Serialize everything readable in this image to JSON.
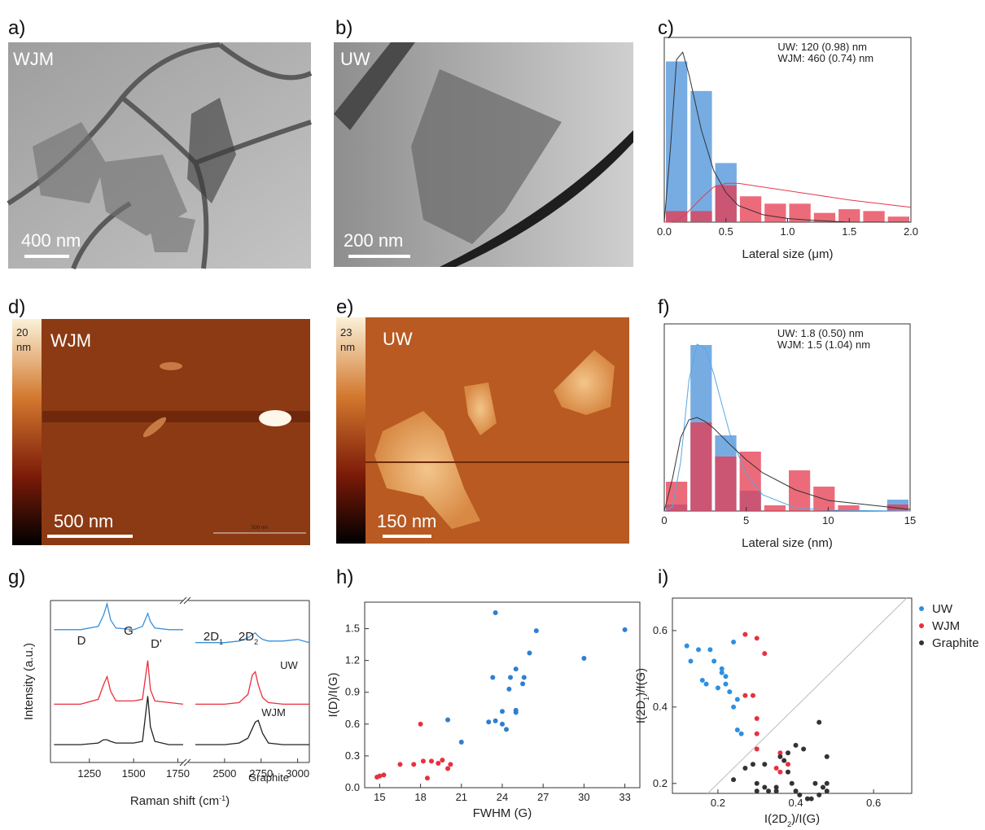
{
  "panels": {
    "a": {
      "label": "a)",
      "sample": "WJM",
      "scale_bar": "400 nm"
    },
    "b": {
      "label": "b)",
      "sample": "UW",
      "scale_bar": "200 nm"
    },
    "d": {
      "label": "d)",
      "sample": "WJM",
      "scale_bar": "500 nm",
      "scale_bar_small": "500 nm",
      "colorbar_max": 20,
      "colorbar_unit": "nm"
    },
    "e": {
      "label": "e)",
      "sample": "UW",
      "scale_bar": "150 nm",
      "colorbar_max": 23,
      "colorbar_unit": "nm"
    }
  },
  "chart_data": [
    {
      "type": "histogram",
      "panel_label": "c)",
      "xlabel": "Lateral size (μm)",
      "bins": [
        0,
        0.2,
        0.4,
        0.6,
        0.8,
        1.0,
        1.2,
        1.4,
        1.6,
        1.8,
        2.0
      ],
      "xlim": [
        0,
        2
      ],
      "xticks": [
        {
          "value": 0,
          "label": "0.0"
        },
        0.5,
        {
          "value": 1,
          "label": "1.0"
        },
        1.5,
        {
          "value": 2,
          "label": "2.0"
        }
      ],
      "ylim": [
        0,
        100
      ],
      "opacity": 0.75,
      "series": [
        {
          "name": "UW: 120 (0.98) nm",
          "color": "#4a90d9",
          "values": [
            87,
            71,
            32,
            0,
            0,
            0,
            0,
            0,
            0,
            0
          ]
        },
        {
          "name": "WJM: 460 (0.74) nm",
          "color": "#e63a4e",
          "values": [
            6,
            6,
            20,
            14,
            10,
            10,
            5,
            7,
            6,
            3
          ]
        }
      ],
      "fits": [
        {
          "color": "#333333",
          "x": [
            0,
            0.05,
            0.1,
            0.15,
            0.2,
            0.3,
            0.4,
            0.5,
            0.6,
            0.8,
            1.0,
            1.2,
            1.5,
            2.0
          ],
          "values": [
            0,
            40,
            88,
            92,
            80,
            50,
            28,
            16,
            9,
            4,
            2,
            1,
            0,
            0
          ]
        },
        {
          "color": "#e63a4e",
          "x": [
            0,
            0.05,
            0.1,
            0.15,
            0.2,
            0.3,
            0.4,
            0.5,
            0.6,
            0.8,
            1.0,
            1.2,
            1.5,
            2.0
          ],
          "values": [
            0,
            0,
            1,
            3,
            6,
            13,
            19,
            21,
            21,
            19,
            17,
            15,
            12,
            8
          ]
        }
      ]
    },
    {
      "type": "histogram",
      "panel_label": "f)",
      "xlabel": "Lateral size (nm)",
      "bins": [
        0,
        1.5,
        3,
        4.5,
        6,
        7.5,
        9,
        10.5,
        12,
        13.5,
        15
      ],
      "xlim": [
        0,
        15
      ],
      "xticks": [
        0,
        5,
        10,
        15
      ],
      "ylim": [
        0,
        230
      ],
      "opacity": 0.75,
      "series": [
        {
          "name": "UW: 1.8 (0.50) nm",
          "color": "#4a90d9",
          "values": [
            8,
            204,
            93,
            25,
            0,
            0,
            0,
            0,
            0,
            14
          ]
        },
        {
          "name": "WJM: 1.5 (1.04) nm",
          "color": "#e63a4e",
          "values": [
            36,
            109,
            67,
            73,
            7,
            50,
            30,
            7,
            0,
            8
          ]
        }
      ],
      "fits": [
        {
          "color": "#5aa7e0",
          "x": [
            0,
            0.5,
            1,
            1.5,
            2,
            2.5,
            3,
            4,
            5,
            6,
            8,
            10,
            15
          ],
          "values": [
            0,
            5,
            60,
            160,
            205,
            200,
            170,
            95,
            45,
            20,
            4,
            1,
            0
          ]
        },
        {
          "color": "#333333",
          "x": [
            0,
            0.5,
            1,
            1.5,
            2,
            2.5,
            3,
            4,
            5,
            6,
            8,
            10,
            15
          ],
          "values": [
            0,
            40,
            90,
            112,
            115,
            110,
            102,
            82,
            63,
            47,
            26,
            13,
            2
          ]
        }
      ]
    },
    {
      "type": "spectra",
      "panel_label": "g)",
      "xlabel": [
        {
          "text": "Raman shift (cm"
        },
        {
          "text": "-1",
          "sup": true
        },
        {
          "text": ")"
        }
      ],
      "ylabel": "Intensity (a.u.)",
      "segments": [
        {
          "xlim": [
            1030,
            1780
          ],
          "xticks": [
            1250,
            1500,
            1750
          ]
        },
        {
          "xlim": [
            2250,
            3080
          ],
          "xticks": [
            2500,
            2750,
            3000
          ]
        }
      ],
      "ylim": [
        0,
        100
      ],
      "x": [
        1050,
        1200,
        1300,
        1330,
        1350,
        1370,
        1400,
        1500,
        1550,
        1580,
        1595,
        1620,
        1700,
        1780,
        2000,
        2300,
        2500,
        2600,
        2660,
        2690,
        2710,
        2730,
        2760,
        2800,
        2900,
        3000,
        3080
      ],
      "series": [
        {
          "name": "UW",
          "color": "#3a8fd8",
          "values": [
            82,
            82,
            84,
            91,
            98,
            88,
            83,
            82,
            84,
            92,
            87,
            83,
            82,
            82,
            null,
            74,
            74,
            75,
            77,
            79,
            80,
            78,
            76,
            75,
            75,
            76,
            74
          ]
        },
        {
          "name": "WJM",
          "color": "#e8303f",
          "values": [
            36,
            36,
            39,
            48,
            53,
            44,
            38,
            38,
            39,
            63,
            45,
            38,
            37,
            36,
            null,
            36,
            36,
            37,
            42,
            54,
            56,
            48,
            40,
            37,
            36,
            36,
            36
          ]
        },
        {
          "name": "Graphite",
          "color": "#222222",
          "values": [
            11,
            11,
            12,
            14,
            14,
            13,
            12,
            12,
            13,
            41,
            22,
            13,
            11,
            11,
            null,
            11,
            11,
            12,
            15,
            21,
            25,
            26,
            18,
            12,
            11,
            11,
            11
          ]
        }
      ],
      "annotations": [
        [
          {
            "text": "D"
          }
        ],
        [
          {
            "text": "G"
          }
        ],
        [
          {
            "text": "D'"
          }
        ],
        [
          {
            "text": "2D"
          },
          {
            "text": "1",
            "sub": true
          }
        ],
        [
          {
            "text": "2D"
          },
          {
            "text": "2",
            "sub": true
          }
        ]
      ]
    },
    {
      "type": "scatter",
      "panel_label": "h)",
      "xlabel": "FWHM (G)",
      "ylabel": "I(D)/I(G)",
      "xlim": [
        13.9,
        34.1
      ],
      "xticks": [
        15,
        18,
        21,
        24,
        27,
        30,
        33
      ],
      "ylim": [
        0,
        1.75
      ],
      "yticks": [
        {
          "value": 0,
          "label": "0.0"
        },
        0.3,
        0.6,
        0.9,
        1.2,
        1.5
      ],
      "series": [
        {
          "color": "#2e7fd0",
          "x": [
            20,
            21,
            23,
            23.3,
            23.5,
            23.5,
            24,
            24,
            24.3,
            24.5,
            24.6,
            25,
            25,
            25,
            25.5,
            25.6,
            26,
            26.5,
            30,
            33
          ],
          "values": [
            0.64,
            0.43,
            0.62,
            1.04,
            1.65,
            0.63,
            0.6,
            0.72,
            0.55,
            0.93,
            1.04,
            0.71,
            0.73,
            1.12,
            0.98,
            1.04,
            1.27,
            1.48,
            1.22,
            1.49
          ]
        },
        {
          "color": "#e8303f",
          "x": [
            14.8,
            15,
            15.3,
            16.5,
            17.5,
            18,
            18.2,
            18.5,
            18.8,
            19.3,
            19.6,
            20,
            20.2
          ],
          "values": [
            0.1,
            0.11,
            0.12,
            0.22,
            0.22,
            0.6,
            0.25,
            0.09,
            0.25,
            0.23,
            0.26,
            0.18,
            0.22
          ]
        }
      ]
    },
    {
      "type": "scatter",
      "panel_label": "i)",
      "reference_line": true,
      "xlabel": [
        {
          "text": "I(2D"
        },
        {
          "text": "2",
          "sub": true
        },
        {
          "text": ")/I(G)"
        }
      ],
      "ylabel": [
        {
          "text": "I(2D"
        },
        {
          "text": "1",
          "sub": true
        },
        {
          "text": ")/I(G)"
        }
      ],
      "xlim": [
        0.083,
        0.698
      ],
      "xticks": [
        0.2,
        0.4,
        0.6
      ],
      "ylim": [
        0.174,
        0.685
      ],
      "yticks": [
        0.2,
        0.4,
        0.6
      ],
      "series": [
        {
          "name": "UW",
          "color": "#2e8fe0",
          "x": [
            0.12,
            0.13,
            0.15,
            0.16,
            0.17,
            0.18,
            0.19,
            0.2,
            0.21,
            0.21,
            0.22,
            0.22,
            0.23,
            0.24,
            0.24,
            0.25,
            0.26,
            0.25
          ],
          "values": [
            0.56,
            0.52,
            0.55,
            0.47,
            0.46,
            0.55,
            0.52,
            0.45,
            0.49,
            0.5,
            0.46,
            0.48,
            0.44,
            0.57,
            0.4,
            0.42,
            0.33,
            0.34
          ]
        },
        {
          "name": "WJM",
          "color": "#e8303f",
          "x": [
            0.27,
            0.3,
            0.32,
            0.27,
            0.29,
            0.3,
            0.3,
            0.3,
            0.35,
            0.36,
            0.38,
            0.36
          ],
          "values": [
            0.59,
            0.58,
            0.54,
            0.43,
            0.43,
            0.37,
            0.33,
            0.29,
            0.24,
            0.28,
            0.25,
            0.23
          ]
        },
        {
          "name": "Graphite",
          "color": "#333333",
          "x": [
            0.24,
            0.27,
            0.29,
            0.3,
            0.32,
            0.32,
            0.33,
            0.35,
            0.36,
            0.37,
            0.38,
            0.39,
            0.4,
            0.41,
            0.42,
            0.43,
            0.44,
            0.45,
            0.46,
            0.46,
            0.47,
            0.48,
            0.48,
            0.48,
            0.4,
            0.38,
            0.35,
            0.3
          ],
          "values": [
            0.21,
            0.24,
            0.25,
            0.18,
            0.25,
            0.19,
            0.18,
            0.18,
            0.27,
            0.26,
            0.23,
            0.2,
            0.18,
            0.17,
            0.29,
            0.16,
            0.16,
            0.2,
            0.36,
            0.17,
            0.19,
            0.2,
            0.27,
            0.18,
            0.3,
            0.28,
            0.19,
            0.2
          ]
        }
      ]
    }
  ]
}
